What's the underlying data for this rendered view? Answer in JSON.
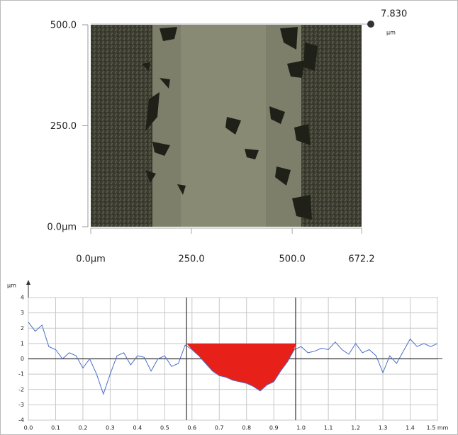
{
  "chart_data": [
    {
      "type": "image",
      "xlim": [
        0,
        672.2
      ],
      "xticks": [
        {
          "value": 0,
          "label": "0.0µm"
        },
        {
          "value": 250,
          "label": "250.0"
        },
        {
          "value": 500,
          "label": "500.0"
        },
        {
          "value": 672.2,
          "label": "672.2"
        }
      ],
      "ylim": [
        0,
        500
      ],
      "yticks": [
        {
          "value": 500,
          "label": "500.0"
        },
        {
          "value": 250,
          "label": "250.0"
        },
        {
          "value": 0,
          "label": "0.0µm"
        }
      ],
      "zmax": {
        "value": 7.83,
        "label": "7.830"
      },
      "zunit": "µm"
    },
    {
      "type": "line",
      "ylabel": "µm",
      "xlim": [
        0,
        1.5
      ],
      "ylim": [
        -4,
        4
      ],
      "xticks": [
        {
          "value": 0,
          "label": "0.0"
        },
        {
          "value": 0.1,
          "label": "0.1"
        },
        {
          "value": 0.2,
          "label": "0.2"
        },
        {
          "value": 0.3,
          "label": "0.3"
        },
        {
          "value": 0.4,
          "label": "0.4"
        },
        {
          "value": 0.5,
          "label": "0.5"
        },
        {
          "value": 0.6,
          "label": "0.6"
        },
        {
          "value": 0.7,
          "label": "0.7"
        },
        {
          "value": 0.8,
          "label": "0.8"
        },
        {
          "value": 0.9,
          "label": "0.9"
        },
        {
          "value": 1.0,
          "label": "1.0"
        },
        {
          "value": 1.1,
          "label": "1.1"
        },
        {
          "value": 1.2,
          "label": "1.2"
        },
        {
          "value": 1.3,
          "label": "1.3"
        },
        {
          "value": 1.4,
          "label": "1.4"
        },
        {
          "value": 1.5,
          "label": "1.5 mm"
        }
      ],
      "yticks": [
        -4,
        -3,
        -2,
        -1,
        0,
        1,
        2,
        3,
        4
      ],
      "grid": true,
      "x": [
        0,
        0.025,
        0.05,
        0.075,
        0.1,
        0.125,
        0.15,
        0.175,
        0.2,
        0.225,
        0.25,
        0.275,
        0.3,
        0.325,
        0.35,
        0.375,
        0.4,
        0.425,
        0.45,
        0.475,
        0.5,
        0.525,
        0.55,
        0.575,
        0.6,
        0.625,
        0.65,
        0.675,
        0.7,
        0.725,
        0.75,
        0.775,
        0.8,
        0.825,
        0.85,
        0.875,
        0.9,
        0.925,
        0.95,
        0.975,
        1.0,
        1.025,
        1.05,
        1.075,
        1.1,
        1.125,
        1.15,
        1.175,
        1.2,
        1.225,
        1.25,
        1.275,
        1.3,
        1.325,
        1.35,
        1.375,
        1.4,
        1.425,
        1.45,
        1.475,
        1.5
      ],
      "series": [
        {
          "color": "#4a6fc9",
          "values": [
            2.4,
            1.8,
            2.2,
            0.8,
            0.6,
            0.0,
            0.4,
            0.2,
            -0.6,
            0.0,
            -1.0,
            -2.3,
            -1.0,
            0.2,
            0.4,
            -0.4,
            0.2,
            0.1,
            -0.8,
            0.0,
            0.2,
            -0.5,
            -0.3,
            0.9,
            0.6,
            0.2,
            -0.3,
            -0.8,
            -1.1,
            -1.2,
            -1.4,
            -1.5,
            -1.6,
            -1.8,
            -2.1,
            -1.7,
            -1.5,
            -0.8,
            -0.2,
            0.6,
            0.8,
            0.4,
            0.5,
            0.7,
            0.6,
            1.1,
            0.6,
            0.3,
            1.0,
            0.4,
            0.6,
            0.2,
            -0.9,
            0.2,
            -0.3,
            0.5,
            1.3,
            0.8,
            1.0,
            0.8,
            1.0
          ]
        }
      ],
      "cursors": [
        0.58,
        0.98
      ],
      "fill_level": 1,
      "fill_color": "#e8201a"
    }
  ]
}
